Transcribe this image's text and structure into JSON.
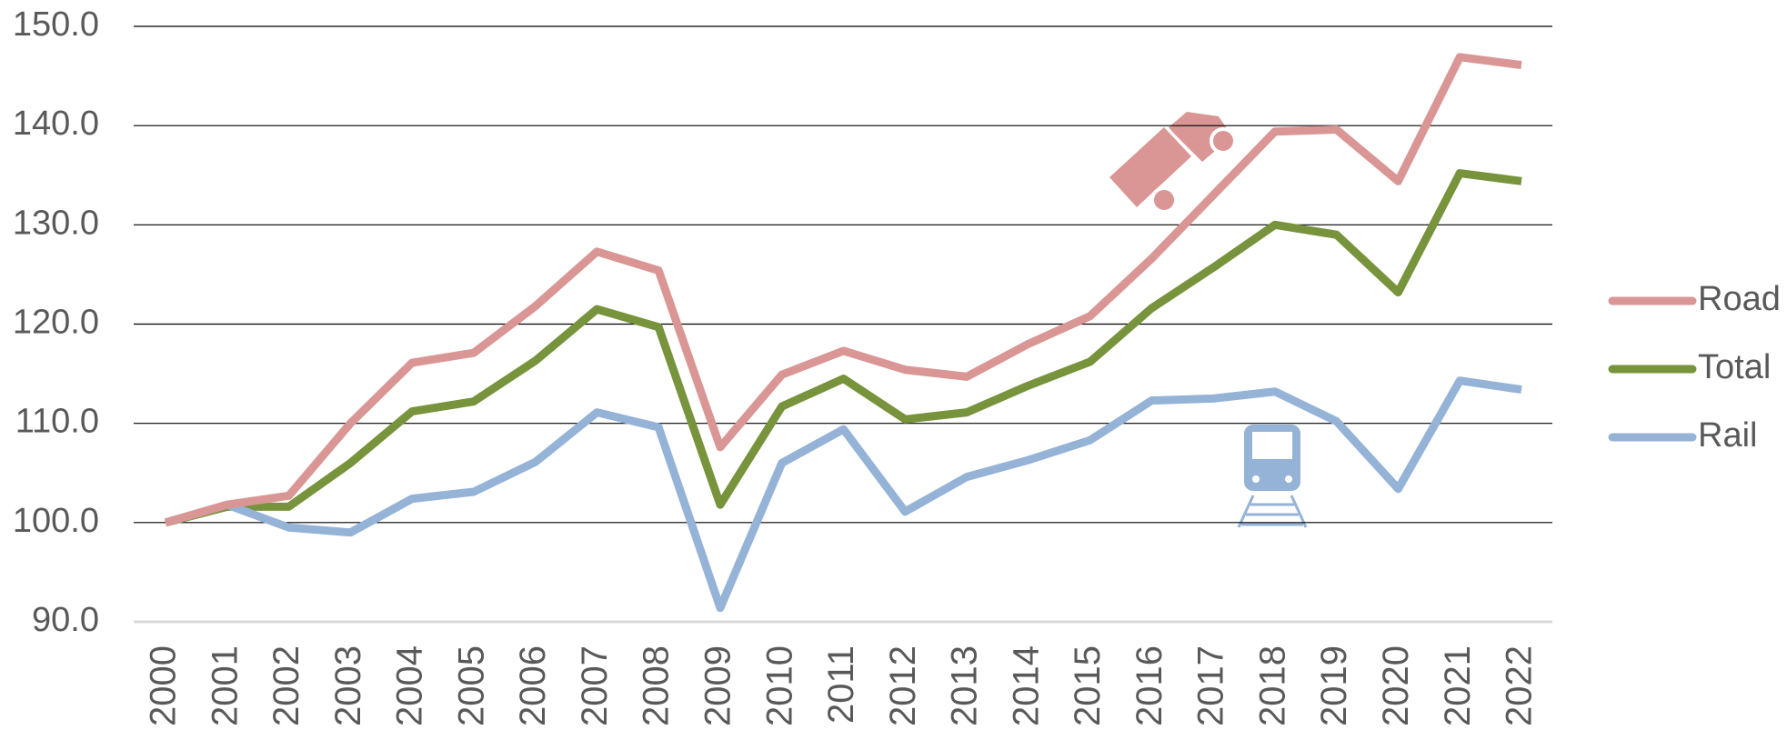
{
  "chart_data": {
    "type": "line",
    "categories": [
      "2000",
      "2001",
      "2002",
      "2003",
      "2004",
      "2005",
      "2006",
      "2007",
      "2008",
      "2009",
      "2010",
      "2011",
      "2012",
      "2013",
      "2014",
      "2015",
      "2016",
      "2017",
      "2018",
      "2019",
      "2020",
      "2021",
      "2022"
    ],
    "series": [
      {
        "name": "Road",
        "color": "#d99694",
        "values": [
          100,
          101.8,
          102.7,
          110,
          116.1,
          117.1,
          121.8,
          127.3,
          125.4,
          107.6,
          114.9,
          117.3,
          115.4,
          114.7,
          118.0,
          120.8,
          126.6,
          133.0,
          139.4,
          139.6,
          134.4,
          146.9,
          146.1
        ]
      },
      {
        "name": "Total",
        "color": "#77933c",
        "values": [
          100,
          101.6,
          101.6,
          106,
          111.2,
          112.2,
          116.3,
          121.5,
          119.7,
          101.8,
          111.7,
          114.5,
          110.4,
          111.1,
          113.8,
          116.2,
          121.6,
          125.7,
          130.0,
          129.0,
          123.2,
          135.2,
          134.4
        ]
      },
      {
        "name": "Rail",
        "color": "#95b3d7",
        "values": [
          100,
          101.8,
          99.5,
          99.0,
          102.4,
          103.1,
          106.1,
          111.1,
          109.6,
          91.4,
          106.0,
          109.4,
          101.1,
          104.6,
          106.3,
          108.3,
          112.3,
          112.5,
          113.2,
          110.2,
          103.4,
          114.3,
          113.4
        ]
      }
    ],
    "ylim": [
      90,
      150
    ],
    "yticks": [
      {
        "value": 90,
        "label": "90.0"
      },
      {
        "value": 100,
        "label": "100.0"
      },
      {
        "value": 110,
        "label": "110.0"
      },
      {
        "value": 120,
        "label": "120.0"
      },
      {
        "value": 130,
        "label": "130.0"
      },
      {
        "value": 140,
        "label": "140.0"
      },
      {
        "value": 150,
        "label": "150.0"
      }
    ],
    "grid": true,
    "legend": "right"
  }
}
